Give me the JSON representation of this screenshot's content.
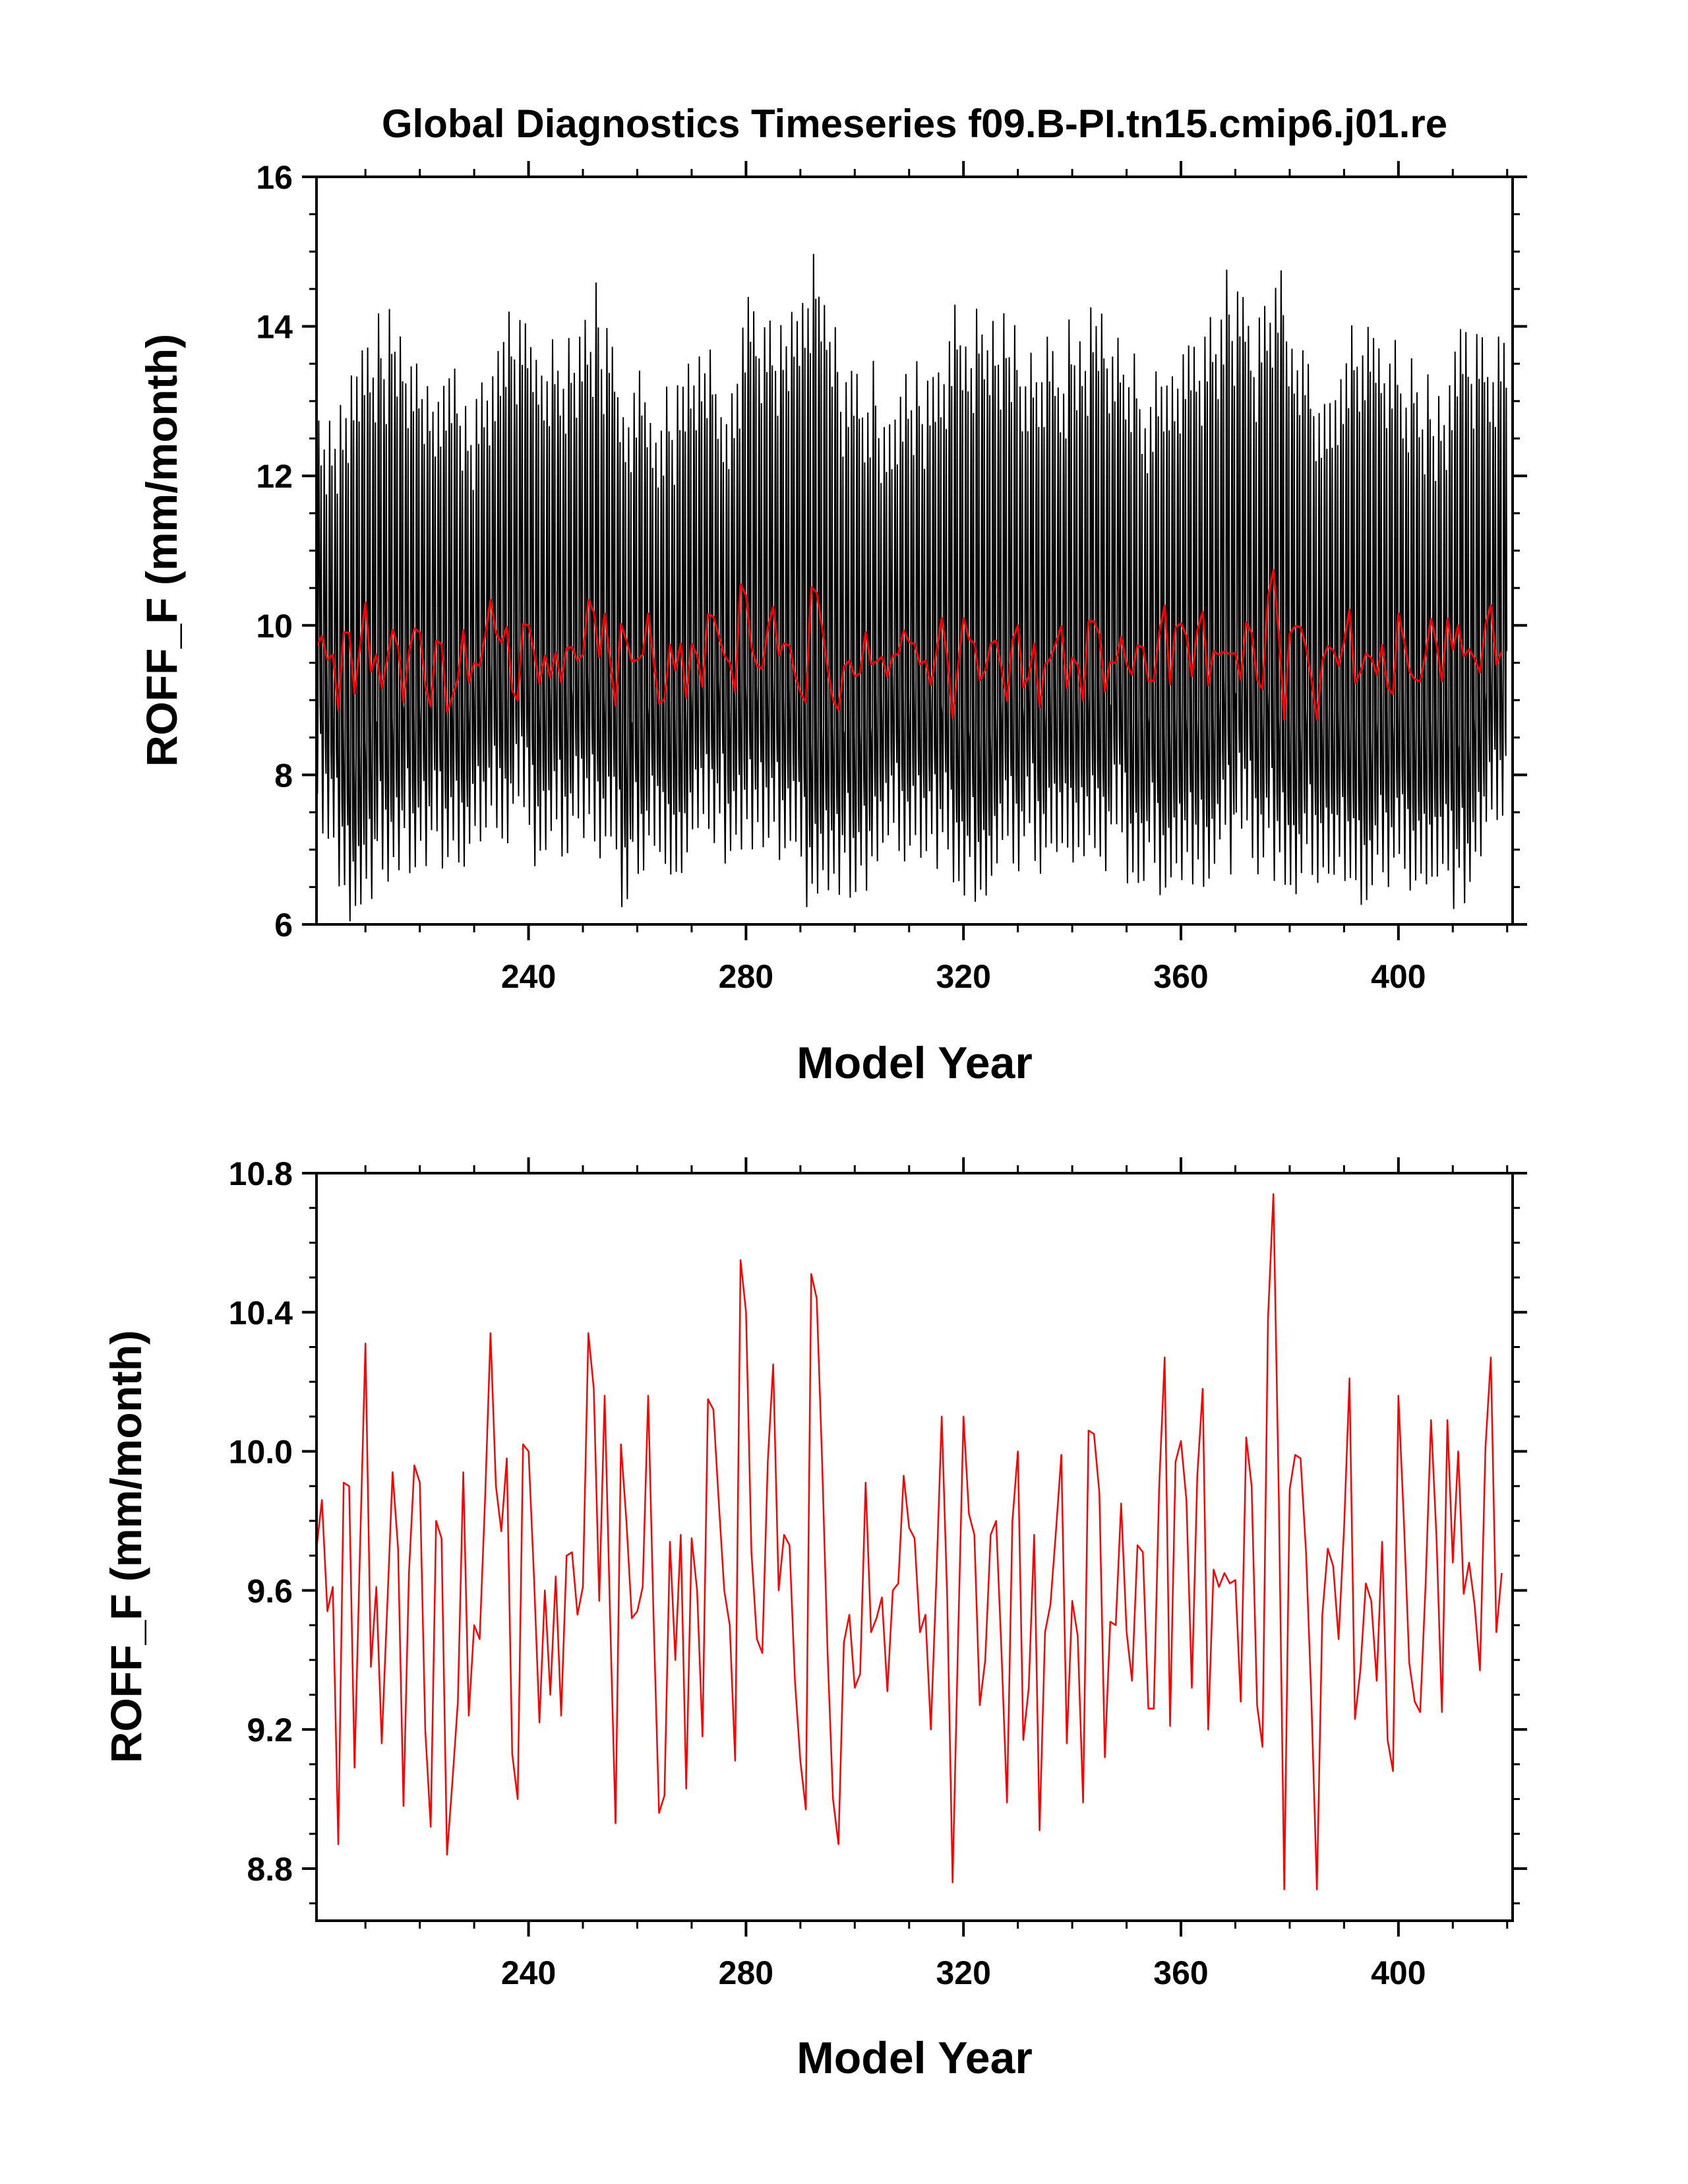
{
  "chart_data": [
    {
      "type": "line",
      "title": "Global Diagnostics Timeseries f09.B-PI.tn15.cmip6.j01.re",
      "xlabel": "Model Year",
      "ylabel": "ROFF_F (mm/month)",
      "xlim": [
        201,
        421
      ],
      "ylim": [
        6,
        16
      ],
      "xticks": [
        240,
        280,
        320,
        360,
        400
      ],
      "yticks": [
        6,
        8,
        10,
        12,
        14,
        16
      ],
      "ytick_labels": [
        "6",
        "8",
        "10",
        "12",
        "14",
        "16"
      ],
      "series": [
        {
          "color": "#000000",
          "style": "monthly",
          "note_peak_max": [
            378,
            14.72
          ],
          "note_trough_min": [
            206,
            6.22
          ],
          "monthly_amplitude_peaks": [
            [
              201,
              12.9
            ],
            [
              205,
              13.0
            ],
            [
              210,
              13.8
            ],
            [
              215,
              13.9
            ],
            [
              219,
              13.6
            ],
            [
              226,
              13.3
            ],
            [
              231,
              12.9
            ],
            [
              235,
              14.2
            ],
            [
              240,
              13.6
            ],
            [
              247,
              13.9
            ],
            [
              252,
              14.3
            ],
            [
              257,
              13.3
            ],
            [
              262,
              13.1
            ],
            [
              266,
              13.0
            ],
            [
              270,
              13.9
            ],
            [
              276,
              13.3
            ],
            [
              280,
              14.5
            ],
            [
              285,
              13.6
            ],
            [
              292,
              14.6
            ],
            [
              297,
              13.5
            ],
            [
              302,
              13.2
            ],
            [
              308,
              13.1
            ],
            [
              312,
              13.3
            ],
            [
              317,
              14.0
            ],
            [
              324,
              14.0
            ],
            [
              330,
              13.8
            ],
            [
              336,
              13.5
            ],
            [
              345,
              14.2
            ],
            [
              350,
              13.4
            ],
            [
              355,
              13.2
            ],
            [
              361,
              13.8
            ],
            [
              368,
              14.4
            ],
            [
              373,
              14.0
            ],
            [
              378,
              14.7
            ],
            [
              384,
              13.4
            ],
            [
              390,
              13.7
            ],
            [
              396,
              13.9
            ],
            [
              401,
              13.5
            ],
            [
              406,
              13.2
            ],
            [
              411,
              13.6
            ],
            [
              416,
              13.6
            ],
            [
              419,
              14.1
            ]
          ],
          "monthly_amplitude_troughs": [
            [
              201,
              7.6
            ],
            [
              206,
              6.2
            ],
            [
              211,
              6.6
            ],
            [
              216,
              6.8
            ],
            [
              221,
              6.8
            ],
            [
              226,
              6.9
            ],
            [
              232,
              7.2
            ],
            [
              237,
              7.3
            ],
            [
              242,
              7.0
            ],
            [
              247,
              6.9
            ],
            [
              252,
              7.2
            ],
            [
              257,
              6.5
            ],
            [
              262,
              7.1
            ],
            [
              268,
              6.9
            ],
            [
              274,
              7.1
            ],
            [
              279,
              7.0
            ],
            [
              285,
              6.9
            ],
            [
              292,
              6.4
            ],
            [
              297,
              6.4
            ],
            [
              303,
              6.8
            ],
            [
              309,
              7.0
            ],
            [
              314,
              7.1
            ],
            [
              319,
              6.7
            ],
            [
              324,
              6.5
            ],
            [
              331,
              6.9
            ],
            [
              337,
              6.8
            ],
            [
              342,
              6.9
            ],
            [
              348,
              6.9
            ],
            [
              353,
              6.6
            ],
            [
              359,
              6.7
            ],
            [
              364,
              6.8
            ],
            [
              370,
              7.0
            ],
            [
              375,
              6.9
            ],
            [
              381,
              6.5
            ],
            [
              386,
              6.8
            ],
            [
              392,
              6.3
            ],
            [
              397,
              6.6
            ],
            [
              402,
              6.7
            ],
            [
              407,
              6.5
            ],
            [
              412,
              6.4
            ],
            [
              417,
              7.2
            ],
            [
              421,
              7.3
            ]
          ]
        },
        {
          "color": "#ff0000",
          "style": "annual",
          "values_ref": "annual_mean"
        }
      ]
    },
    {
      "type": "line",
      "title": "",
      "xlabel": "Model Year",
      "ylabel": "ROFF_F (mm/month)",
      "xlim": [
        201,
        421
      ],
      "ylim": [
        8.65,
        10.8
      ],
      "xticks": [
        240,
        280,
        320,
        360,
        400
      ],
      "yticks": [
        8.8,
        9.2,
        9.6,
        10.0,
        10.4,
        10.8
      ],
      "ytick_labels": [
        "8.8",
        "9.2",
        "9.6",
        "10.0",
        "10.4",
        "10.8"
      ],
      "series": [
        {
          "color": "#ff0000",
          "values_ref": "annual_mean"
        }
      ]
    }
  ],
  "annual_mean": {
    "x_start": 201,
    "x_step": 1,
    "values": [
      9.72,
      9.86,
      9.54,
      9.61,
      8.87,
      9.91,
      9.9,
      9.09,
      9.72,
      10.31,
      9.38,
      9.61,
      9.16,
      9.55,
      9.94,
      9.72,
      8.98,
      9.65,
      9.96,
      9.91,
      9.2,
      8.92,
      9.8,
      9.75,
      8.84,
      9.05,
      9.28,
      9.94,
      9.24,
      9.5,
      9.46,
      9.86,
      10.34,
      9.9,
      9.77,
      9.98,
      9.13,
      9.0,
      10.02,
      10.0,
      9.64,
      9.22,
      9.6,
      9.3,
      9.64,
      9.24,
      9.7,
      9.71,
      9.53,
      9.61,
      10.34,
      10.18,
      9.57,
      10.16,
      9.52,
      8.93,
      10.02,
      9.8,
      9.52,
      9.54,
      9.61,
      10.16,
      9.52,
      8.96,
      9.01,
      9.74,
      9.4,
      9.76,
      9.03,
      9.75,
      9.6,
      9.18,
      10.15,
      10.12,
      9.85,
      9.6,
      9.5,
      9.11,
      10.55,
      10.4,
      9.71,
      9.46,
      9.42,
      9.97,
      10.25,
      9.6,
      9.76,
      9.73,
      9.34,
      9.11,
      8.97,
      10.51,
      10.44,
      9.97,
      9.42,
      9.0,
      8.87,
      9.45,
      9.53,
      9.32,
      9.36,
      9.91,
      9.48,
      9.52,
      9.58,
      9.31,
      9.6,
      9.62,
      9.93,
      9.78,
      9.75,
      9.48,
      9.53,
      9.2,
      9.63,
      10.1,
      9.58,
      8.76,
      9.46,
      10.1,
      9.82,
      9.76,
      9.27,
      9.4,
      9.76,
      9.8,
      9.42,
      8.99,
      9.8,
      10.0,
      9.17,
      9.32,
      9.76,
      8.91,
      9.48,
      9.56,
      9.77,
      9.99,
      9.16,
      9.57,
      9.47,
      8.99,
      10.06,
      10.05,
      9.88,
      9.12,
      9.51,
      9.5,
      9.85,
      9.48,
      9.34,
      9.73,
      9.71,
      9.26,
      9.26,
      9.9,
      10.27,
      9.21,
      9.97,
      10.03,
      9.86,
      9.32,
      9.93,
      10.18,
      9.2,
      9.66,
      9.61,
      9.65,
      9.62,
      9.63,
      9.28,
      10.04,
      9.9,
      9.27,
      9.15,
      10.38,
      10.74,
      9.87,
      8.74,
      9.89,
      9.99,
      9.98,
      9.71,
      9.28,
      8.74,
      9.53,
      9.72,
      9.67,
      9.46,
      9.78,
      10.21,
      9.23,
      9.37,
      9.62,
      9.57,
      9.34,
      9.74,
      9.17,
      9.08,
      10.16,
      9.8,
      9.39,
      9.28,
      9.25,
      9.62,
      10.09,
      9.75,
      9.25,
      10.09,
      9.68,
      10.0,
      9.59,
      9.68,
      9.56,
      9.37,
      10.01,
      10.27,
      9.48,
      9.65
    ]
  },
  "colors": {
    "monthly": "#000000",
    "annual": "#ff0000",
    "axes": "#000000"
  }
}
